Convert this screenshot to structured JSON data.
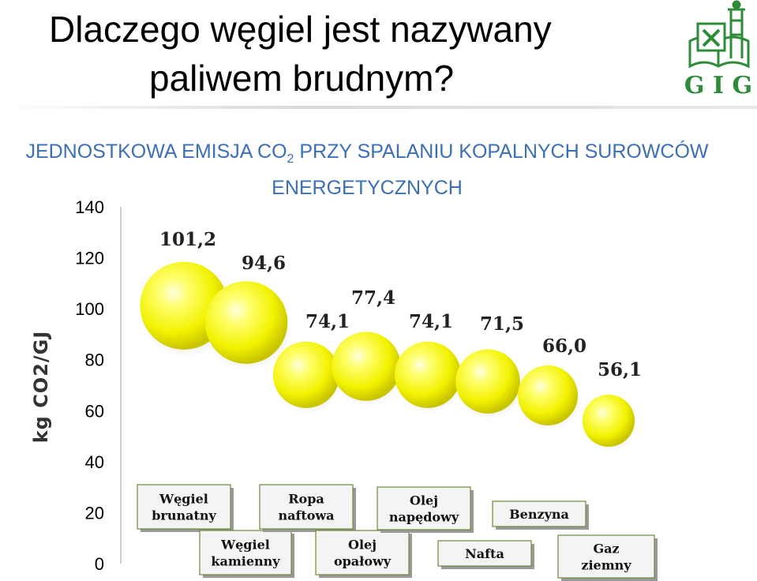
{
  "title": {
    "line1": "Dlaczego węgiel jest nazywany",
    "line2": "paliwem brudnym?"
  },
  "subtitle": {
    "pre": "JEDNOSTKOWA EMISJA CO",
    "sub": "2",
    "post": " PRZY SPALANIU KOPALNYCH SUROWCÓW",
    "line2": "ENERGETYCZNYCH"
  },
  "logo": {
    "text": "G I G",
    "icon": "mining-hammers-tower-book-icon",
    "color": "#2e8b3a"
  },
  "chart_data": {
    "type": "scatter",
    "ylabel": "kg CO2/GJ",
    "ylim": [
      0,
      140
    ],
    "yticks": [
      0,
      20,
      40,
      60,
      80,
      100,
      120,
      140
    ],
    "categories": [
      "Węgiel brunatny",
      "Węgiel kamienny",
      "Ropa naftowa",
      "Olej opałowy",
      "Olej napędowy",
      "Nafta",
      "Benzyna",
      "Gaz ziemny"
    ],
    "values": [
      101.2,
      94.6,
      74.1,
      77.4,
      74.1,
      71.5,
      66.0,
      56.1
    ],
    "value_labels": [
      "101,2",
      "94,6",
      "74,1",
      "77,4",
      "74,1",
      "71,5",
      "66,0",
      "56,1"
    ],
    "marker_color": "#ffff33",
    "grid": false
  }
}
